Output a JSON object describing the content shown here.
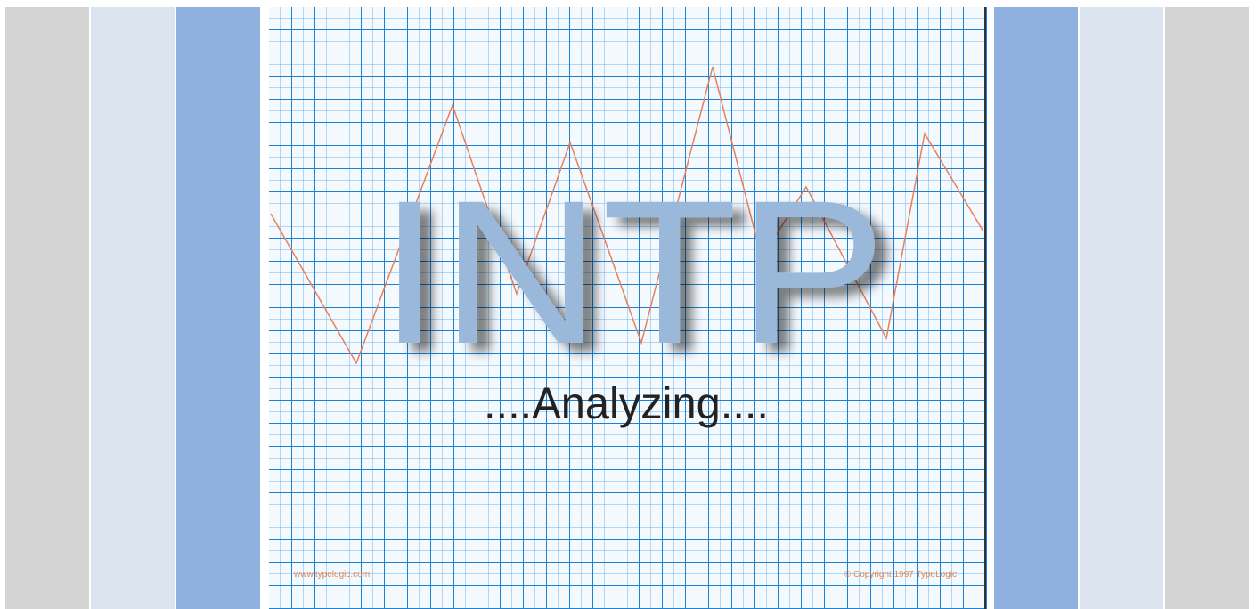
{
  "image": {
    "title": "INTP",
    "subtitle": "....Analyzing....",
    "footer_left": "www.typelogic.com",
    "footer_right": "© Copyright 1997 TypeLogic"
  }
}
